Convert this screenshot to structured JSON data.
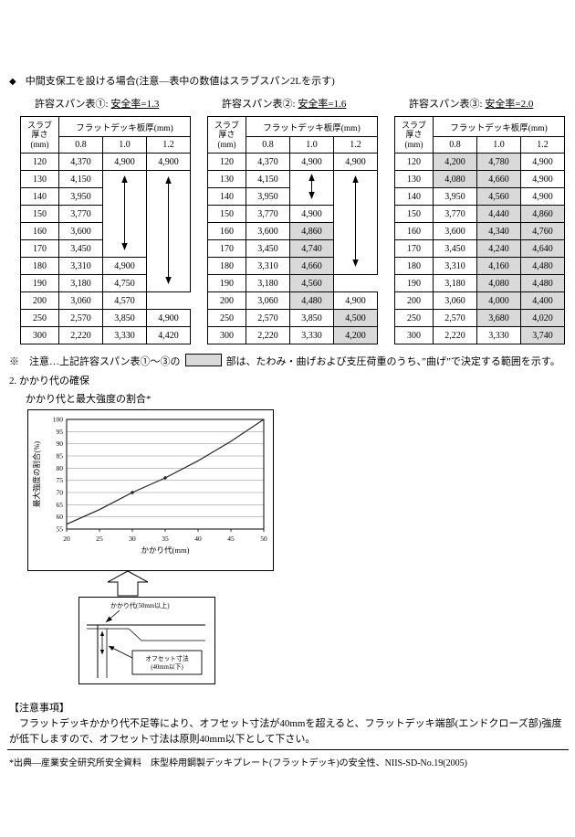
{
  "page": {
    "bullet": "◆",
    "intro": "中間支保工を設ける場合(注意―表中の数値はスラブスパン2Lを示す)",
    "note_prefix": "※　注意…上記許容スパン表①～③の",
    "note_suffix": "部は、たわみ・曲げおよび支圧荷重のうち、”曲げ”で決定する範囲を示す。",
    "section2_heading": "2. かかり代の確保",
    "chart_caption": "かかり代と最大強度の割合*",
    "caution_title": "【注意事項】",
    "caution_body": "　フラットデッキかかり代不足等により、オフセット寸法が40mmを超えると、フラットデッキ端部(エンドクローズ部)強度が低下しますので、オフセット寸法は原則40mm以下として下さい。",
    "footnote": "*出典―産業安全研究所安全資料　床型枠用鋼製デッキプレート(フラットデッキ)の安全性、NIIS-SD-No.19(2005)",
    "shade_color": "#d9d9d9"
  },
  "table_header": {
    "thickness_label": "スラブ\n厚さ\n(mm)",
    "deck_label": "フラットデッキ板厚(mm)",
    "sub": [
      "0.8",
      "1.0",
      "1.2"
    ]
  },
  "tables": [
    {
      "title": "許容スパン表①: ",
      "safety": "安全率=1.3",
      "rows": [
        {
          "t": "120",
          "cells": [
            {
              "v": "4,370"
            },
            {
              "v": "4,900"
            },
            {
              "v": "4,900"
            }
          ]
        },
        {
          "t": "130",
          "cells": [
            {
              "v": "4,150"
            },
            {
              "arrow": 5
            },
            {
              "arrow": 7
            }
          ]
        },
        {
          "t": "140",
          "cells": [
            {
              "v": "3,950"
            }
          ]
        },
        {
          "t": "150",
          "cells": [
            {
              "v": "3,770"
            }
          ]
        },
        {
          "t": "160",
          "cells": [
            {
              "v": "3,600"
            }
          ]
        },
        {
          "t": "170",
          "cells": [
            {
              "v": "3,450"
            }
          ]
        },
        {
          "t": "180",
          "cells": [
            {
              "v": "3,310"
            },
            {
              "v": "4,900"
            }
          ]
        },
        {
          "t": "190",
          "cells": [
            {
              "v": "3,180"
            },
            {
              "v": "4,750"
            }
          ]
        },
        {
          "t": "200",
          "cells": [
            {
              "v": "3,060"
            },
            {
              "v": "4,570"
            }
          ]
        },
        {
          "t": "250",
          "cells": [
            {
              "v": "2,570"
            },
            {
              "v": "3,850"
            },
            {
              "v": "4,900"
            }
          ]
        },
        {
          "t": "300",
          "cells": [
            {
              "v": "2,220"
            },
            {
              "v": "3,330"
            },
            {
              "v": "4,420"
            }
          ]
        }
      ]
    },
    {
      "title": "許容スパン表②: ",
      "safety": "安全率=1.6",
      "rows": [
        {
          "t": "120",
          "cells": [
            {
              "v": "4,370"
            },
            {
              "v": "4,900"
            },
            {
              "v": "4,900"
            }
          ]
        },
        {
          "t": "130",
          "cells": [
            {
              "v": "4,150"
            },
            {
              "arrow": 2
            },
            {
              "arrow": 6
            }
          ]
        },
        {
          "t": "140",
          "cells": [
            {
              "v": "3,950"
            }
          ]
        },
        {
          "t": "150",
          "cells": [
            {
              "v": "3,770"
            },
            {
              "v": "4,900"
            }
          ]
        },
        {
          "t": "160",
          "cells": [
            {
              "v": "3,600"
            },
            {
              "v": "4,860",
              "s": true
            }
          ]
        },
        {
          "t": "170",
          "cells": [
            {
              "v": "3,450"
            },
            {
              "v": "4,740",
              "s": true
            }
          ]
        },
        {
          "t": "180",
          "cells": [
            {
              "v": "3,310"
            },
            {
              "v": "4,660",
              "s": true
            }
          ]
        },
        {
          "t": "190",
          "cells": [
            {
              "v": "3,180"
            },
            {
              "v": "4,560",
              "s": true
            }
          ]
        },
        {
          "t": "200",
          "cells": [
            {
              "v": "3,060"
            },
            {
              "v": "4,480",
              "s": true
            },
            {
              "v": "4,900"
            }
          ]
        },
        {
          "t": "250",
          "cells": [
            {
              "v": "2,570"
            },
            {
              "v": "3,850"
            },
            {
              "v": "4,500",
              "s": true
            }
          ]
        },
        {
          "t": "300",
          "cells": [
            {
              "v": "2,220"
            },
            {
              "v": "3,330"
            },
            {
              "v": "4,200",
              "s": true
            }
          ]
        }
      ]
    },
    {
      "title": "許容スパン表③: ",
      "safety": "安全率=2.0",
      "rows": [
        {
          "t": "120",
          "cells": [
            {
              "v": "4,200",
              "s": true
            },
            {
              "v": "4,780",
              "s": true
            },
            {
              "v": "4,900"
            }
          ]
        },
        {
          "t": "130",
          "cells": [
            {
              "v": "4,080",
              "s": true
            },
            {
              "v": "4,660",
              "s": true
            },
            {
              "v": "4,900"
            }
          ]
        },
        {
          "t": "140",
          "cells": [
            {
              "v": "3,950"
            },
            {
              "v": "4,560",
              "s": true
            },
            {
              "v": "4,900"
            }
          ]
        },
        {
          "t": "150",
          "cells": [
            {
              "v": "3,770"
            },
            {
              "v": "4,440",
              "s": true
            },
            {
              "v": "4,860",
              "s": true
            }
          ]
        },
        {
          "t": "160",
          "cells": [
            {
              "v": "3,600"
            },
            {
              "v": "4,340",
              "s": true
            },
            {
              "v": "4,760",
              "s": true
            }
          ]
        },
        {
          "t": "170",
          "cells": [
            {
              "v": "3,450"
            },
            {
              "v": "4,240",
              "s": true
            },
            {
              "v": "4,640",
              "s": true
            }
          ]
        },
        {
          "t": "180",
          "cells": [
            {
              "v": "3,310"
            },
            {
              "v": "4,160",
              "s": true
            },
            {
              "v": "4,480",
              "s": true
            }
          ]
        },
        {
          "t": "190",
          "cells": [
            {
              "v": "3,180"
            },
            {
              "v": "4,080",
              "s": true
            },
            {
              "v": "4,480",
              "s": true
            }
          ]
        },
        {
          "t": "200",
          "cells": [
            {
              "v": "3,060"
            },
            {
              "v": "4,000",
              "s": true
            },
            {
              "v": "4,400",
              "s": true
            }
          ]
        },
        {
          "t": "250",
          "cells": [
            {
              "v": "2,570"
            },
            {
              "v": "3,680",
              "s": true
            },
            {
              "v": "4,020",
              "s": true
            }
          ]
        },
        {
          "t": "300",
          "cells": [
            {
              "v": "2,220"
            },
            {
              "v": "3,330"
            },
            {
              "v": "3,740",
              "s": true
            }
          ]
        }
      ]
    }
  ],
  "chart_data": {
    "type": "line",
    "title": "かかり代と最大強度の割合",
    "xlabel": "かかり代(mm)",
    "ylabel": "最大強度の割合(%)",
    "xlim": [
      20,
      50
    ],
    "ylim": [
      55,
      100
    ],
    "xticks": [
      20,
      25,
      30,
      35,
      40,
      45,
      50
    ],
    "yticks": [
      55,
      60,
      65,
      70,
      75,
      80,
      85,
      90,
      95,
      100
    ],
    "grid": true,
    "legend": "none",
    "series": [
      {
        "name": "最大強度の割合",
        "x": [
          20,
          25,
          30,
          35,
          40,
          45,
          50
        ],
        "y": [
          57,
          63,
          70,
          76,
          83,
          91,
          100
        ]
      }
    ],
    "marker_points": [
      [
        30,
        70
      ],
      [
        35,
        76
      ]
    ]
  },
  "diagram": {
    "label_kakari": "かかり代(50mm以上)",
    "label_offset_line1": "オフセット寸法",
    "label_offset_line2": "(40mm以下)"
  }
}
